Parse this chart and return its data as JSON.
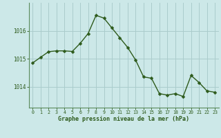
{
  "x": [
    0,
    1,
    2,
    3,
    4,
    5,
    6,
    7,
    8,
    9,
    10,
    11,
    12,
    13,
    14,
    15,
    16,
    17,
    18,
    19,
    20,
    21,
    22,
    23
  ],
  "y": [
    1014.85,
    1015.05,
    1015.25,
    1015.28,
    1015.28,
    1015.26,
    1015.55,
    1015.9,
    1016.55,
    1016.45,
    1016.1,
    1015.75,
    1015.4,
    1014.95,
    1014.35,
    1014.3,
    1013.75,
    1013.7,
    1013.75,
    1013.65,
    1014.4,
    1014.15,
    1013.85,
    1013.8
  ],
  "ylim": [
    1013.25,
    1017.0
  ],
  "yticks": [
    1014.0,
    1015.0,
    1016.0
  ],
  "xlabel": "Graphe pression niveau de la mer (hPa)",
  "line_color": "#2d5a1b",
  "marker_color": "#2d5a1b",
  "bg_color": "#cce8e8",
  "grid_color": "#aacccc",
  "tick_color": "#2d5a1b",
  "label_color": "#2d5a1b",
  "border_color": "#5a8a5a",
  "figsize": [
    3.2,
    2.0
  ],
  "dpi": 100
}
